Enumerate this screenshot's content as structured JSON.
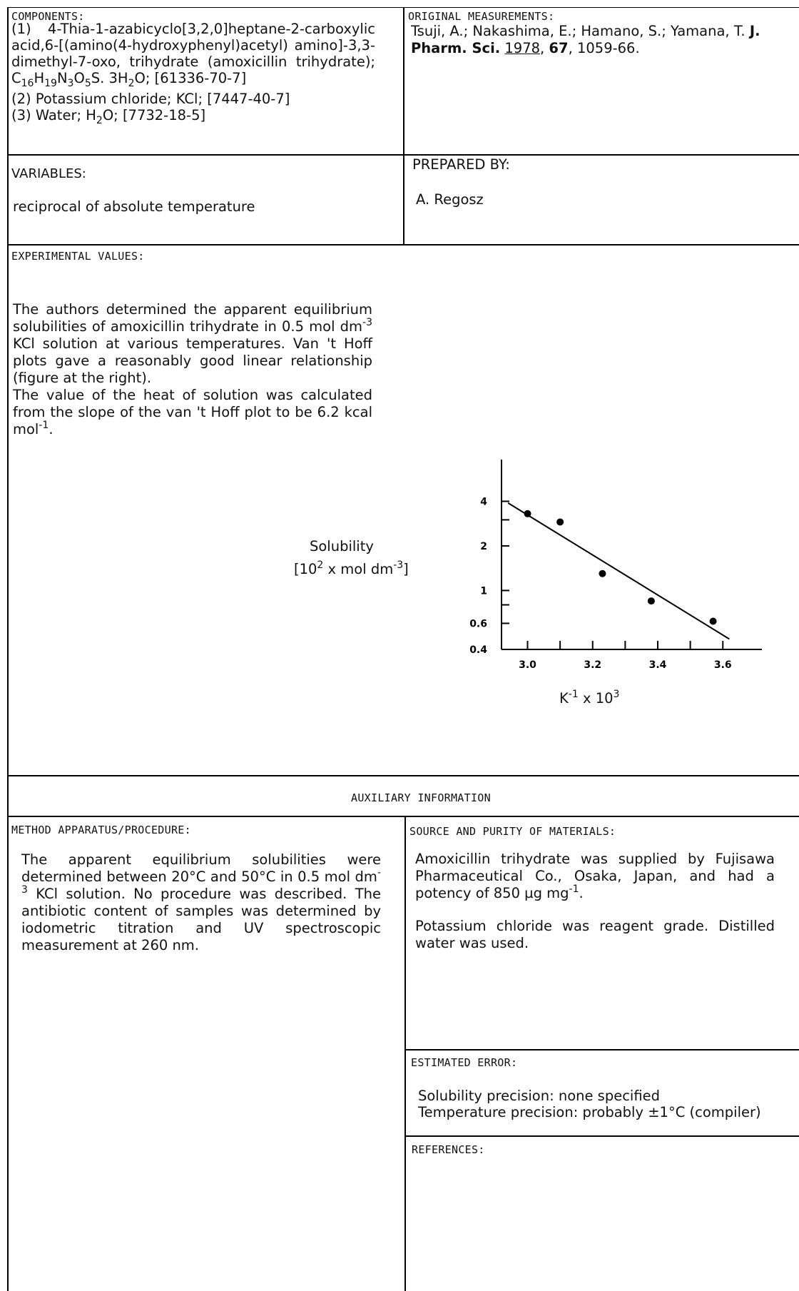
{
  "components": {
    "heading": "COMPONENTS:",
    "c1_pre": "(1) 4-Thia-1-azabicyclo[3,2,0]heptane-2-carboxylic acid,6-[(amino(4-hydroxyphenyl)acetyl) amino]-3,3-dimethyl-7-oxo, trihydrate (amoxicillin trihydrate);",
    "c1_formula": [
      "C",
      "16",
      "H",
      "19",
      "N",
      "3",
      "O",
      "5",
      "S. 3H",
      "2",
      "O; [61336-70-7]"
    ],
    "c2": "(2) Potassium chloride; KCl; [7447-40-7]",
    "c3_pre": "(3) Water; H",
    "c3_sub": "2",
    "c3_post": "O; [7732-18-5]"
  },
  "original_measurements": {
    "heading": "ORIGINAL MEASUREMENTS:",
    "authors": "Tsuji, A.; Nakashima, E.; Hamano, S.; Yamana, T.",
    "journal": "J. Pharm. Sci.",
    "year": "1978",
    "volume": "67",
    "pages": "1059-66."
  },
  "variables": {
    "heading": "VARIABLES:",
    "text": "reciprocal of absolute temperature"
  },
  "prepared_by": {
    "heading": "PREPARED BY:",
    "name": "A. Regosz"
  },
  "experimental": {
    "heading": "EXPERIMENTAL VALUES:",
    "p1": "The authors determined the apparent equilibrium solubilities of amoxicillin trihydrate in 0.5 mol dm",
    "p1_sup": "-3",
    "p1_post": " KCl solution at various temperatures. Van 't Hoff plots gave a reasonably good linear relationship (figure at the right).",
    "p2_pre": "The value of the heat of solution was calculated from the slope of the van 't Hoff plot to be 6.2 kcal mol",
    "p2_sup": "-1",
    "p2_post": "."
  },
  "chart_data": {
    "type": "scatter",
    "ylabel_line1": "Solubility",
    "ylabel_line2_pre": "[10",
    "ylabel_line2_sup1": "2",
    "ylabel_line2_mid": " x mol dm",
    "ylabel_line2_sup2": "-3",
    "ylabel_line2_post": "]",
    "xlabel_pre": "K",
    "xlabel_sup1": "-1",
    "xlabel_mid": " x 10",
    "xlabel_sup2": "3",
    "x_ticks": [
      "3.0",
      "3.2",
      "3.4",
      "3.6"
    ],
    "x_tick_values": [
      3.0,
      3.2,
      3.4,
      3.6
    ],
    "y_ticks": [
      "4",
      "2",
      "1",
      "0.6",
      "0.4"
    ],
    "y_tick_values": [
      4,
      2,
      1,
      0.6,
      0.4
    ],
    "y_scale": "log",
    "xlim": [
      2.92,
      3.72
    ],
    "ylim": [
      0.4,
      8
    ],
    "points": [
      {
        "x": 3.0,
        "y": 3.3
      },
      {
        "x": 3.1,
        "y": 2.9
      },
      {
        "x": 3.23,
        "y": 1.3
      },
      {
        "x": 3.38,
        "y": 0.85
      },
      {
        "x": 3.57,
        "y": 0.62
      }
    ],
    "fit_line": [
      {
        "x": 2.94,
        "y": 3.9
      },
      {
        "x": 3.62,
        "y": 0.47
      }
    ],
    "grid": false
  },
  "auxiliary": {
    "heading": "AUXILIARY INFORMATION"
  },
  "method": {
    "heading": "METHOD APPARATUS/PROCEDURE:",
    "text_pre": "The apparent equilibrium solubilities were determined between 20°C and 50°C in 0.5 mol dm",
    "text_sup": "-3",
    "text_post": " KCl solution. No procedure was described. The antibiotic content of samples was determined by iodometric titration and UV spectroscopic measurement at 260 nm."
  },
  "source": {
    "heading": "SOURCE AND PURITY OF MATERIALS:",
    "p1_pre": "Amoxicillin trihydrate was supplied by Fujisawa Pharmaceutical Co., Osaka, Japan, and had a potency of 850 µg mg",
    "p1_sup": "-1",
    "p1_post": ".",
    "p2": "Potassium chloride was reagent grade. Distilled water was used."
  },
  "estimated_error": {
    "heading": "ESTIMATED ERROR:",
    "line1": "Solubility precision: none specified",
    "line2": "Temperature precision: probably ±1°C (compiler)"
  },
  "references": {
    "heading": "REFERENCES:"
  }
}
